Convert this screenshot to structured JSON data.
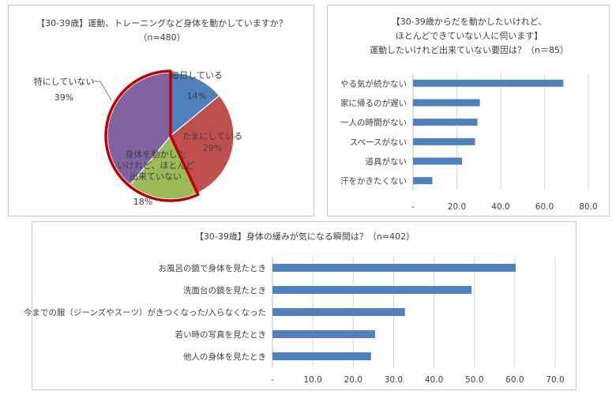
{
  "pie": {
    "title_lines": [
      "【30-39歳】運動、トレーニングなど身体を動かしていますか？",
      "（n=480）"
    ],
    "highlight_color": "#c00000",
    "chart_data": {
      "type": "pie",
      "title": "【30-39歳】運動、トレーニングなど身体を動かしていますか？",
      "subtitle": "（n=480）",
      "slices": [
        {
          "label_lines": [
            "毎日している"
          ],
          "value": 14,
          "value_label": "14%",
          "color": "#4f81bd"
        },
        {
          "label_lines": [
            "たまにしている"
          ],
          "value": 29,
          "value_label": "29%",
          "color": "#c0504d"
        },
        {
          "label_lines": [
            "身体を動かした",
            "いけれど、ほとんど",
            "出来ていない"
          ],
          "value": 18,
          "value_label": "18%",
          "color": "#9bbb59",
          "highlighted": true
        },
        {
          "label_lines": [
            "特にしていない"
          ],
          "value": 39,
          "value_label": "39%",
          "color": "#8064a2",
          "highlighted": true
        }
      ]
    }
  },
  "reasons": {
    "title_lines": [
      "【30-39歳からだを動かしたいけれど、",
      "ほとんどできていない人に伺います】",
      "運動したいけれど出来ていない要因は？（n＝85）"
    ],
    "chart_data": {
      "type": "bar",
      "orientation": "horizontal",
      "title": "【30-39歳からだを動かしたいけれど、ほとんどできていない人に伺います】運動したいけれど出来ていない要因は？（n＝85）",
      "categories": [
        "やる気が続かない",
        "家に帰るのが遅い",
        "一人の時間がない",
        "スペースがない",
        "道具がない",
        "汗をかきたくない"
      ],
      "values": [
        68.6,
        30.5,
        29.4,
        28.3,
        22.4,
        8.8
      ],
      "xlim": [
        0,
        80
      ],
      "xticks": [
        0,
        20,
        40,
        60,
        80
      ],
      "xtick_labels": [
        "-",
        "20.0",
        "40.0",
        "60.0",
        "80.0"
      ],
      "bar_color": "#4f81bd",
      "grid": true
    }
  },
  "moments": {
    "title_lines": [
      "【30-39歳】身体の緩みが気になる瞬間は？（n=402）"
    ],
    "chart_data": {
      "type": "bar",
      "orientation": "horizontal",
      "title": "【30-39歳】身体の緩みが気になる瞬間は？（n=402）",
      "categories": [
        "お風呂の鏡で身体を見たとき",
        "洗面台の鏡を見たとき",
        "今までの服（ジーンズやスーツ）がきつくなった/入らなくなった",
        "若い時の写真を見たとき",
        "他人の身体を見たとき"
      ],
      "values": [
        60.2,
        49.3,
        32.8,
        25.4,
        24.4
      ],
      "xlim": [
        0,
        70
      ],
      "xticks": [
        0,
        10,
        20,
        30,
        40,
        50,
        60,
        70
      ],
      "xtick_labels": [
        "-",
        "10.0",
        "20.0",
        "30.0",
        "40.0",
        "50.0",
        "60.0",
        "70.0"
      ],
      "bar_color": "#4f81bd",
      "grid": true
    }
  }
}
